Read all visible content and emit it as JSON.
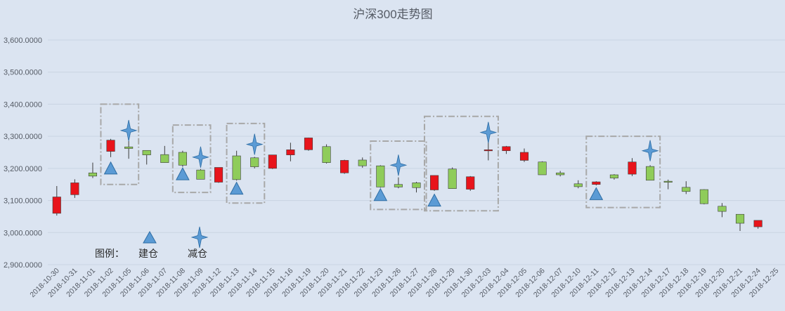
{
  "chart_data": {
    "type": "candlestick",
    "title": "沪深300走势图",
    "ylim": [
      2900,
      3600
    ],
    "ytick_values": [
      2900,
      3000,
      3100,
      3200,
      3300,
      3400,
      3500,
      3600
    ],
    "ytick_labels": [
      "2,900.0000",
      "3,000.0000",
      "3,100.0000",
      "3,200.0000",
      "3,300.0000",
      "3,400.0000",
      "3,500.0000",
      "3,600.0000"
    ],
    "grid": true,
    "colors": {
      "up": "#e8141b",
      "down": "#8fcc5a",
      "edge": "#3d3d3d",
      "marker": "#5b9bd5",
      "marker_edge": "#2e6da4",
      "box": "#a8a8a8",
      "grid": "#c9d3e2"
    },
    "categories": [
      "2018-10-30",
      "2018-10-31",
      "2018-11-01",
      "2018-11-02",
      "2018-11-05",
      "2018-11-06",
      "2018-11-07",
      "2018-11-08",
      "2018-11-09",
      "2018-11-12",
      "2018-11-13",
      "2018-11-14",
      "2018-11-15",
      "2018-11-16",
      "2018-11-19",
      "2018-11-20",
      "2018-11-21",
      "2018-11-22",
      "2018-11-23",
      "2018-11-26",
      "2018-11-27",
      "2018-11-28",
      "2018-11-29",
      "2018-11-30",
      "2018-12-03",
      "2018-12-04",
      "2018-12-05",
      "2018-12-06",
      "2018-12-07",
      "2018-12-10",
      "2018-12-11",
      "2018-12-12",
      "2018-12-13",
      "2018-12-14",
      "2018-12-17",
      "2018-12-18",
      "2018-12-19",
      "2018-12-20",
      "2018-12-21",
      "2018-12-24",
      "2018-12-25"
    ],
    "ohlc": [
      [
        3060,
        3145,
        3053,
        3111
      ],
      [
        3118,
        3166,
        3108,
        3155
      ],
      [
        3186,
        3218,
        3170,
        3176
      ],
      [
        3253,
        3292,
        3235,
        3288
      ],
      [
        3267,
        3285,
        3230,
        3262
      ],
      [
        3256,
        3256,
        3212,
        3242
      ],
      [
        3243,
        3270,
        3218,
        3218
      ],
      [
        3250,
        3255,
        3205,
        3210
      ],
      [
        3195,
        3198,
        3166,
        3166
      ],
      [
        3157,
        3203,
        3155,
        3203
      ],
      [
        3239,
        3255,
        3162,
        3165
      ],
      [
        3233,
        3236,
        3200,
        3205
      ],
      [
        3200,
        3242,
        3198,
        3242
      ],
      [
        3242,
        3280,
        3222,
        3258
      ],
      [
        3258,
        3296,
        3255,
        3295
      ],
      [
        3268,
        3275,
        3215,
        3218
      ],
      [
        3186,
        3227,
        3183,
        3225
      ],
      [
        3226,
        3234,
        3202,
        3208
      ],
      [
        3208,
        3210,
        3140,
        3142
      ],
      [
        3150,
        3172,
        3138,
        3142
      ],
      [
        3155,
        3158,
        3125,
        3140
      ],
      [
        3133,
        3178,
        3130,
        3178
      ],
      [
        3198,
        3203,
        3137,
        3137
      ],
      [
        3135,
        3176,
        3130,
        3174
      ],
      [
        3257,
        3300,
        3225,
        3258
      ],
      [
        3255,
        3270,
        3245,
        3268
      ],
      [
        3225,
        3262,
        3220,
        3250
      ],
      [
        3220,
        3222,
        3180,
        3180
      ],
      [
        3186,
        3192,
        3175,
        3180
      ],
      [
        3152,
        3163,
        3138,
        3143
      ],
      [
        3150,
        3160,
        3147,
        3158
      ],
      [
        3180,
        3182,
        3165,
        3170
      ],
      [
        3182,
        3232,
        3176,
        3220
      ],
      [
        3206,
        3210,
        3163,
        3163
      ],
      [
        3160,
        3165,
        3135,
        3158
      ],
      [
        3141,
        3160,
        3120,
        3128
      ],
      [
        3134,
        3135,
        3088,
        3090
      ],
      [
        3082,
        3092,
        3048,
        3066
      ],
      [
        3057,
        3057,
        3005,
        3029
      ],
      [
        3018,
        3038,
        3012,
        3038
      ],
      [
        3038,
        3038,
        3038,
        3038
      ]
    ],
    "buy_markers": [
      {
        "date": "2018-11-02",
        "price": 3200
      },
      {
        "date": "2018-11-08",
        "price": 3182
      },
      {
        "date": "2018-11-13",
        "price": 3137
      },
      {
        "date": "2018-11-23",
        "price": 3117
      },
      {
        "date": "2018-11-28",
        "price": 3100
      },
      {
        "date": "2018-12-11",
        "price": 3120
      }
    ],
    "sell_markers": [
      {
        "date": "2018-11-05",
        "price": 3318
      },
      {
        "date": "2018-11-09",
        "price": 3235
      },
      {
        "date": "2018-11-14",
        "price": 3275
      },
      {
        "date": "2018-11-26",
        "price": 3210
      },
      {
        "date": "2018-12-03",
        "price": 3312
      },
      {
        "date": "2018-12-14",
        "price": 3255
      }
    ],
    "highlight_boxes": [
      {
        "start": "2018-11-02",
        "end": "2018-11-05",
        "top": 3400,
        "bottom": 3150
      },
      {
        "start": "2018-11-08",
        "end": "2018-11-09",
        "top": 3335,
        "bottom": 3125
      },
      {
        "start": "2018-11-13",
        "end": "2018-11-14",
        "top": 3340,
        "bottom": 3092
      },
      {
        "start": "2018-11-23",
        "end": "2018-11-27",
        "top": 3285,
        "bottom": 3072
      },
      {
        "start": "2018-11-28",
        "end": "2018-12-03",
        "top": 3362,
        "bottom": 3068
      },
      {
        "start": "2018-12-11",
        "end": "2018-12-14",
        "top": 3300,
        "bottom": 3078
      }
    ],
    "legend": {
      "label": "图例：",
      "buy": "建仓",
      "sell": "减仓",
      "position": "bottom-left"
    }
  }
}
